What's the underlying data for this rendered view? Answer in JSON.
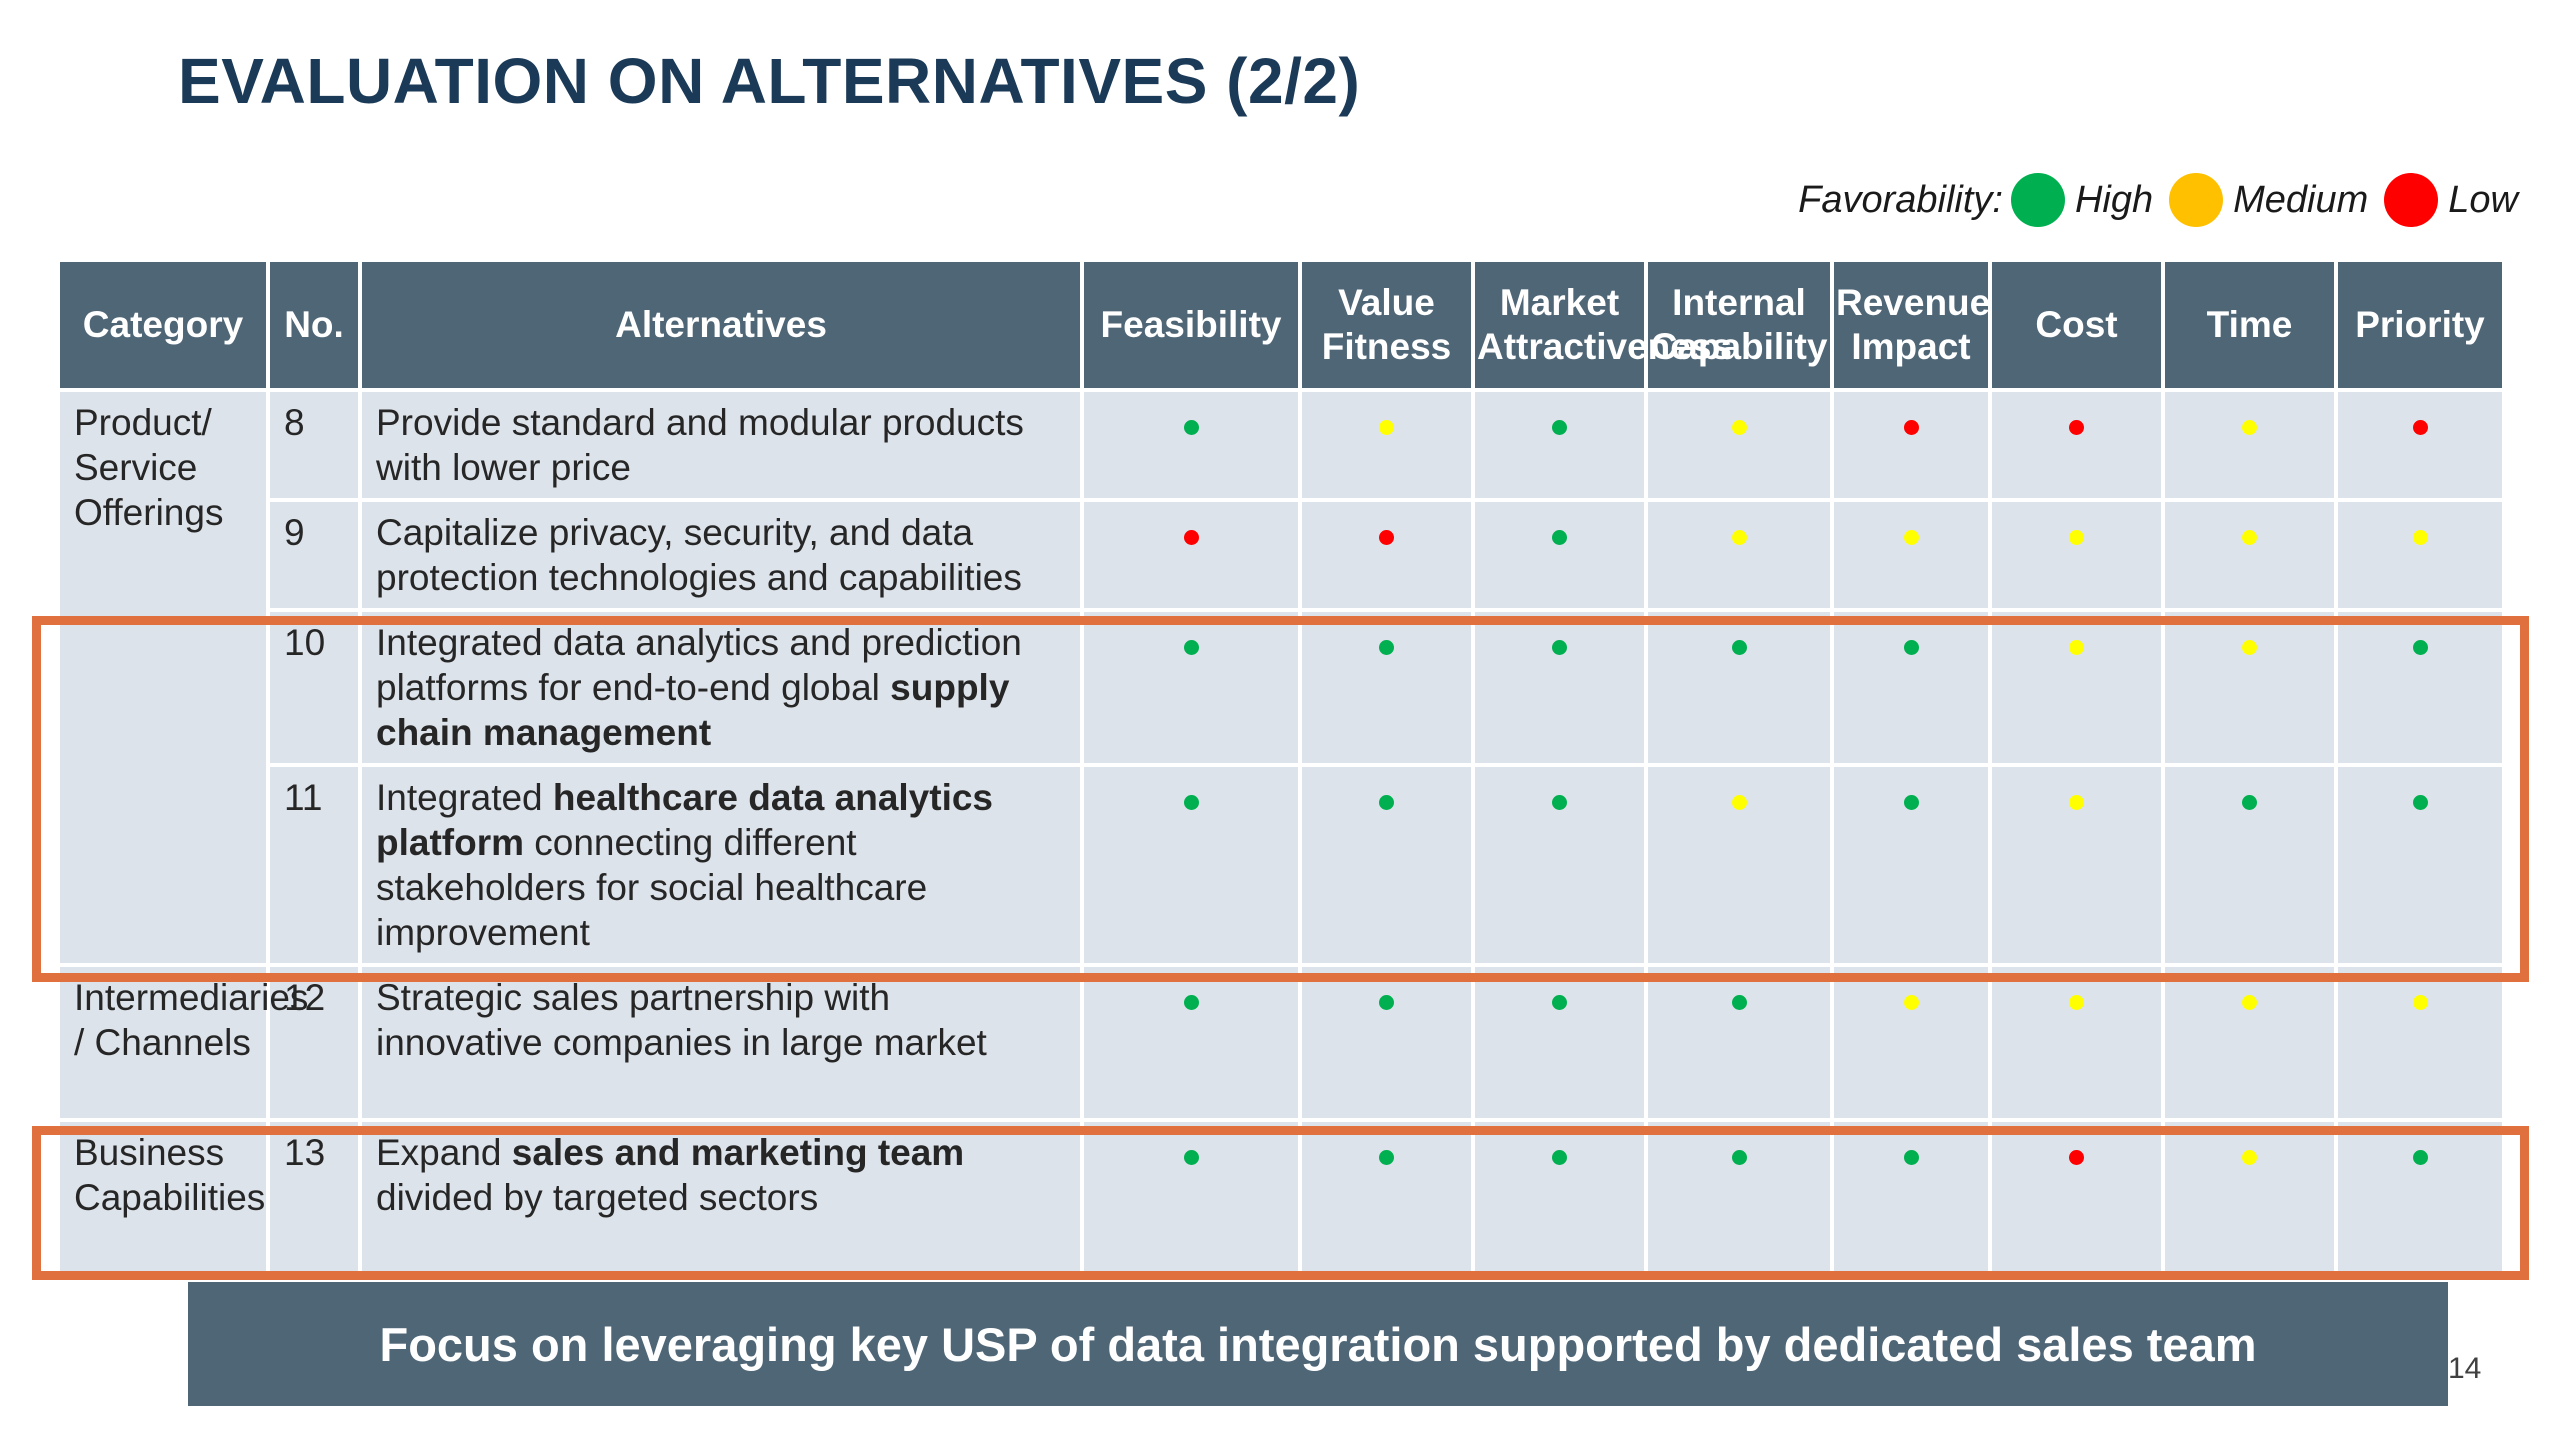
{
  "title": "EVALUATION ON ALTERNATIVES (2/2)",
  "legend": {
    "label": "Favorability:",
    "items": [
      {
        "label": "High",
        "color": "#00b050"
      },
      {
        "label": "Medium",
        "color": "#ffc000"
      },
      {
        "label": "Low",
        "color": "#ff0000"
      }
    ]
  },
  "colors": {
    "green": "#00b050",
    "yellow": "#ffff00",
    "red": "#ff0000",
    "header_bg": "#4f6677",
    "row_bg": "#dde3ea",
    "highlight": "#e0703e",
    "title": "#1b3a57"
  },
  "table": {
    "headers": [
      "Category",
      "No.",
      "Alternatives",
      "Feasibility",
      "Value Fitness",
      "Market Attractiveness",
      "Internal Capability",
      "Revenue Impact",
      "Cost",
      "Time",
      "Priority"
    ],
    "categories": [
      "Product/ Service Offerings",
      "Intermediaries / Channels",
      "Business Capabilities"
    ],
    "rows": [
      {
        "no": "8",
        "alternative": [
          {
            "t": "Provide standard and modular products with lower price"
          }
        ],
        "ratings": [
          "green",
          "yellow",
          "green",
          "yellow",
          "red",
          "red",
          "yellow",
          "red"
        ]
      },
      {
        "no": "9",
        "alternative": [
          {
            "t": "Capitalize privacy, security, and data protection technologies and capabilities"
          }
        ],
        "ratings": [
          "red",
          "red",
          "green",
          "yellow",
          "yellow",
          "yellow",
          "yellow",
          "yellow"
        ]
      },
      {
        "no": "10",
        "alternative": [
          {
            "t": "Integrated data analytics and prediction platforms for end-to-end global "
          },
          {
            "t": "supply chain management",
            "b": true
          }
        ],
        "ratings": [
          "green",
          "green",
          "green",
          "green",
          "green",
          "yellow",
          "yellow",
          "green"
        ]
      },
      {
        "no": "11",
        "alternative": [
          {
            "t": "Integrated "
          },
          {
            "t": "healthcare data analytics platform",
            "b": true
          },
          {
            "t": " connecting different stakeholders for social healthcare improvement"
          }
        ],
        "ratings": [
          "green",
          "green",
          "green",
          "yellow",
          "green",
          "yellow",
          "green",
          "green"
        ]
      },
      {
        "no": "12",
        "alternative": [
          {
            "t": "Strategic sales partnership with innovative companies in large market"
          }
        ],
        "ratings": [
          "green",
          "green",
          "green",
          "green",
          "yellow",
          "yellow",
          "yellow",
          "yellow"
        ]
      },
      {
        "no": "13",
        "alternative": [
          {
            "t": "Expand "
          },
          {
            "t": "sales and marketing team",
            "b": true
          },
          {
            "t": " divided by targeted sectors"
          }
        ],
        "ratings": [
          "green",
          "green",
          "green",
          "green",
          "green",
          "red",
          "yellow",
          "green"
        ]
      }
    ]
  },
  "banner": "Focus on leveraging key USP of data integration supported by dedicated sales team",
  "page_number": "14"
}
